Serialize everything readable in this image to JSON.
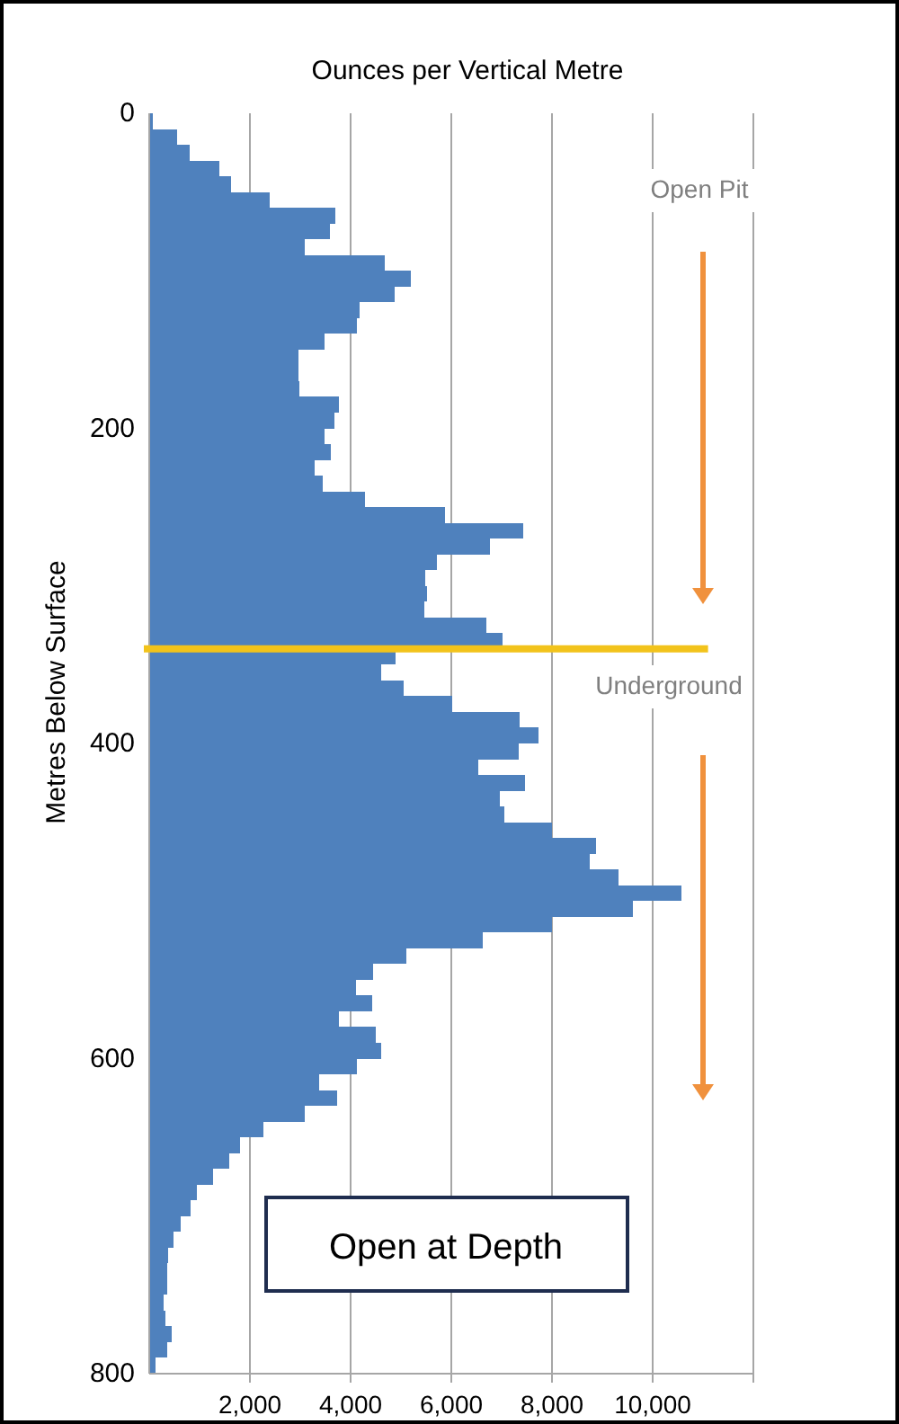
{
  "chart_data": {
    "type": "histogram",
    "orientation": "horizontal",
    "title": "Ounces per Vertical Metre",
    "ylabel": "Metres Below Surface",
    "bins": [
      0,
      10,
      20,
      30,
      40,
      50,
      60,
      70,
      80,
      90,
      100,
      110,
      120,
      130,
      140,
      150,
      160,
      170,
      180,
      190,
      200,
      210,
      220,
      230,
      240,
      250,
      260,
      270,
      280,
      290,
      300,
      310,
      320,
      330,
      340,
      350,
      360,
      370,
      380,
      390,
      400,
      410,
      420,
      430,
      440,
      450,
      460,
      470,
      480,
      490,
      500,
      510,
      520,
      530,
      540,
      550,
      560,
      570,
      580,
      590,
      600,
      610,
      620,
      630,
      640,
      650,
      660,
      670,
      680,
      690,
      700,
      710,
      720,
      730,
      740,
      750,
      760,
      770,
      780,
      790,
      800
    ],
    "values": [
      80,
      560,
      800,
      1390,
      1630,
      2400,
      3700,
      3590,
      3090,
      4680,
      5190,
      4870,
      4180,
      4120,
      3490,
      2970,
      2970,
      2990,
      3760,
      3680,
      3490,
      3610,
      3290,
      3440,
      4280,
      5870,
      7420,
      6760,
      5720,
      5490,
      5510,
      5460,
      6700,
      7010,
      4890,
      4600,
      5050,
      6020,
      7360,
      7740,
      7340,
      6530,
      7460,
      6970,
      7050,
      8000,
      8870,
      8750,
      9320,
      10570,
      9610,
      8000,
      6620,
      5100,
      4450,
      4100,
      4420,
      3760,
      4500,
      4600,
      4120,
      3370,
      3730,
      3090,
      2260,
      1810,
      1590,
      1270,
      950,
      830,
      620,
      480,
      380,
      360,
      360,
      290,
      320,
      440,
      360,
      120
    ],
    "color": "#4f81bd",
    "xlim": [
      0,
      12000
    ],
    "xticks": [
      {
        "value": 2000,
        "label": "2,000"
      },
      {
        "value": 4000,
        "label": "4,000"
      },
      {
        "value": 6000,
        "label": "6,000"
      },
      {
        "value": 8000,
        "label": "8,000"
      },
      {
        "value": 10000,
        "label": "10,000"
      },
      {
        "value": 12000,
        "label": null
      }
    ],
    "ylim": [
      800,
      0
    ],
    "yticks": [
      0,
      200,
      400,
      600,
      800
    ],
    "grid": "x",
    "ref_lines": [
      {
        "axis": "y",
        "value": 340,
        "color": "#f2c31b"
      }
    ],
    "annotations": [
      "Open Pit",
      "Underground",
      "Open at Depth"
    ]
  }
}
